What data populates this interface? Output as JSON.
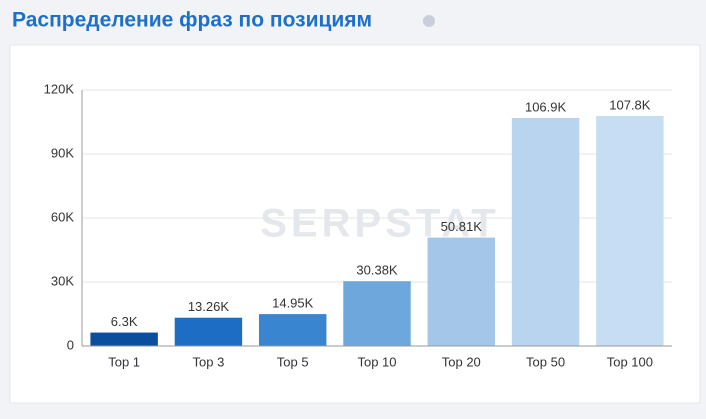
{
  "chart_data": {
    "type": "bar",
    "title": "Распределение фраз по позициям",
    "watermark": "SERPSTAT",
    "categories": [
      "Top 1",
      "Top 3",
      "Top 5",
      "Top 10",
      "Top 20",
      "Top 50",
      "Top 100"
    ],
    "values": [
      6300,
      13260,
      14950,
      30380,
      50810,
      106900,
      107800
    ],
    "value_labels": [
      "6.3K",
      "13.26K",
      "14.95K",
      "30.38K",
      "50.81K",
      "106.9K",
      "107.8K"
    ],
    "colors": [
      "#0b4f9c",
      "#1c6dc3",
      "#3a85cf",
      "#6ea7db",
      "#a3c6e9",
      "#b8d4ef",
      "#c6ddf3"
    ],
    "ylim": [
      0,
      120000
    ],
    "yticks": [
      0,
      {
        "value": 30000,
        "label": "30K"
      },
      {
        "value": 60000,
        "label": "60K"
      },
      {
        "value": 90000,
        "label": "90K"
      },
      {
        "value": 120000,
        "label": "120K"
      }
    ],
    "grid": true
  }
}
